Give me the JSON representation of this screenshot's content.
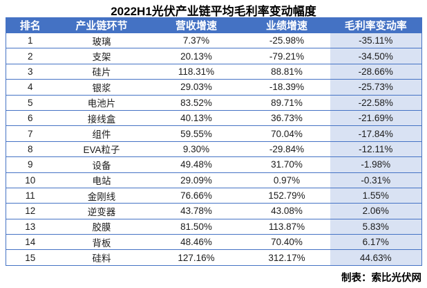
{
  "title": "2022H1光伏产业链平均毛利率变动幅度",
  "footer": "制表：索比光伏网",
  "colors": {
    "header_bg": "#4472C4",
    "header_text": "#FFFFFF",
    "highlight_column_bg": "#D9E2F3",
    "border": "#4472C4",
    "body_text": "#1b1b1b"
  },
  "table": {
    "columns": [
      "排名",
      "产业链环节",
      "营收增速",
      "业绩增速",
      "毛利率变动率"
    ],
    "rows": [
      {
        "rank": "1",
        "segment": "玻璃",
        "revenue": "7.37%",
        "profit": "-25.98%",
        "margin": "-35.11%"
      },
      {
        "rank": "2",
        "segment": "支架",
        "revenue": "20.13%",
        "profit": "-79.21%",
        "margin": "-34.50%"
      },
      {
        "rank": "3",
        "segment": "硅片",
        "revenue": "118.31%",
        "profit": "88.81%",
        "margin": "-28.66%"
      },
      {
        "rank": "4",
        "segment": "银浆",
        "revenue": "29.03%",
        "profit": "-18.39%",
        "margin": "-25.73%"
      },
      {
        "rank": "5",
        "segment": "电池片",
        "revenue": "83.52%",
        "profit": "89.71%",
        "margin": "-22.58%"
      },
      {
        "rank": "6",
        "segment": "接线盒",
        "revenue": "40.13%",
        "profit": "36.73%",
        "margin": "-21.69%"
      },
      {
        "rank": "7",
        "segment": "组件",
        "revenue": "59.55%",
        "profit": "70.04%",
        "margin": "-17.84%"
      },
      {
        "rank": "8",
        "segment": "EVA粒子",
        "revenue": "9.30%",
        "profit": "-29.84%",
        "margin": "-12.11%"
      },
      {
        "rank": "9",
        "segment": "设备",
        "revenue": "49.48%",
        "profit": "31.70%",
        "margin": "-1.98%"
      },
      {
        "rank": "10",
        "segment": "电站",
        "revenue": "29.09%",
        "profit": "0.97%",
        "margin": "-0.31%"
      },
      {
        "rank": "11",
        "segment": "金刚线",
        "revenue": "76.66%",
        "profit": "152.79%",
        "margin": "1.55%"
      },
      {
        "rank": "12",
        "segment": "逆变器",
        "revenue": "43.78%",
        "profit": "43.08%",
        "margin": "2.06%"
      },
      {
        "rank": "13",
        "segment": "胶膜",
        "revenue": "81.50%",
        "profit": "113.87%",
        "margin": "5.83%"
      },
      {
        "rank": "14",
        "segment": "背板",
        "revenue": "48.46%",
        "profit": "70.40%",
        "margin": "6.17%"
      },
      {
        "rank": "15",
        "segment": "硅料",
        "revenue": "127.16%",
        "profit": "312.17%",
        "margin": "44.63%"
      }
    ]
  },
  "chart_data": {
    "type": "table",
    "title": "2022H1光伏产业链平均毛利率变动幅度",
    "columns": [
      "排名",
      "产业链环节",
      "营收增速",
      "业绩增速",
      "毛利率变动率"
    ],
    "units": "%",
    "rows": [
      [
        1,
        "玻璃",
        7.37,
        -25.98,
        -35.11
      ],
      [
        2,
        "支架",
        20.13,
        -79.21,
        -34.5
      ],
      [
        3,
        "硅片",
        118.31,
        88.81,
        -28.66
      ],
      [
        4,
        "银浆",
        29.03,
        -18.39,
        -25.73
      ],
      [
        5,
        "电池片",
        83.52,
        89.71,
        -22.58
      ],
      [
        6,
        "接线盒",
        40.13,
        36.73,
        -21.69
      ],
      [
        7,
        "组件",
        59.55,
        70.04,
        -17.84
      ],
      [
        8,
        "EVA粒子",
        9.3,
        -29.84,
        -12.11
      ],
      [
        9,
        "设备",
        49.48,
        31.7,
        -1.98
      ],
      [
        10,
        "电站",
        29.09,
        0.97,
        -0.31
      ],
      [
        11,
        "金刚线",
        76.66,
        152.79,
        1.55
      ],
      [
        12,
        "逆变器",
        43.78,
        43.08,
        2.06
      ],
      [
        13,
        "胶膜",
        81.5,
        113.87,
        5.83
      ],
      [
        14,
        "背板",
        48.46,
        70.4,
        6.17
      ],
      [
        15,
        "硅料",
        127.16,
        312.17,
        44.63
      ]
    ],
    "annotations": [
      "制表：索比光伏网"
    ],
    "layout_hints": {
      "header_style": "blue background, white bold text",
      "highlighted_column": "毛利率变动率 (light blue background)",
      "row_rules": "thin blue horizontal lines"
    }
  }
}
